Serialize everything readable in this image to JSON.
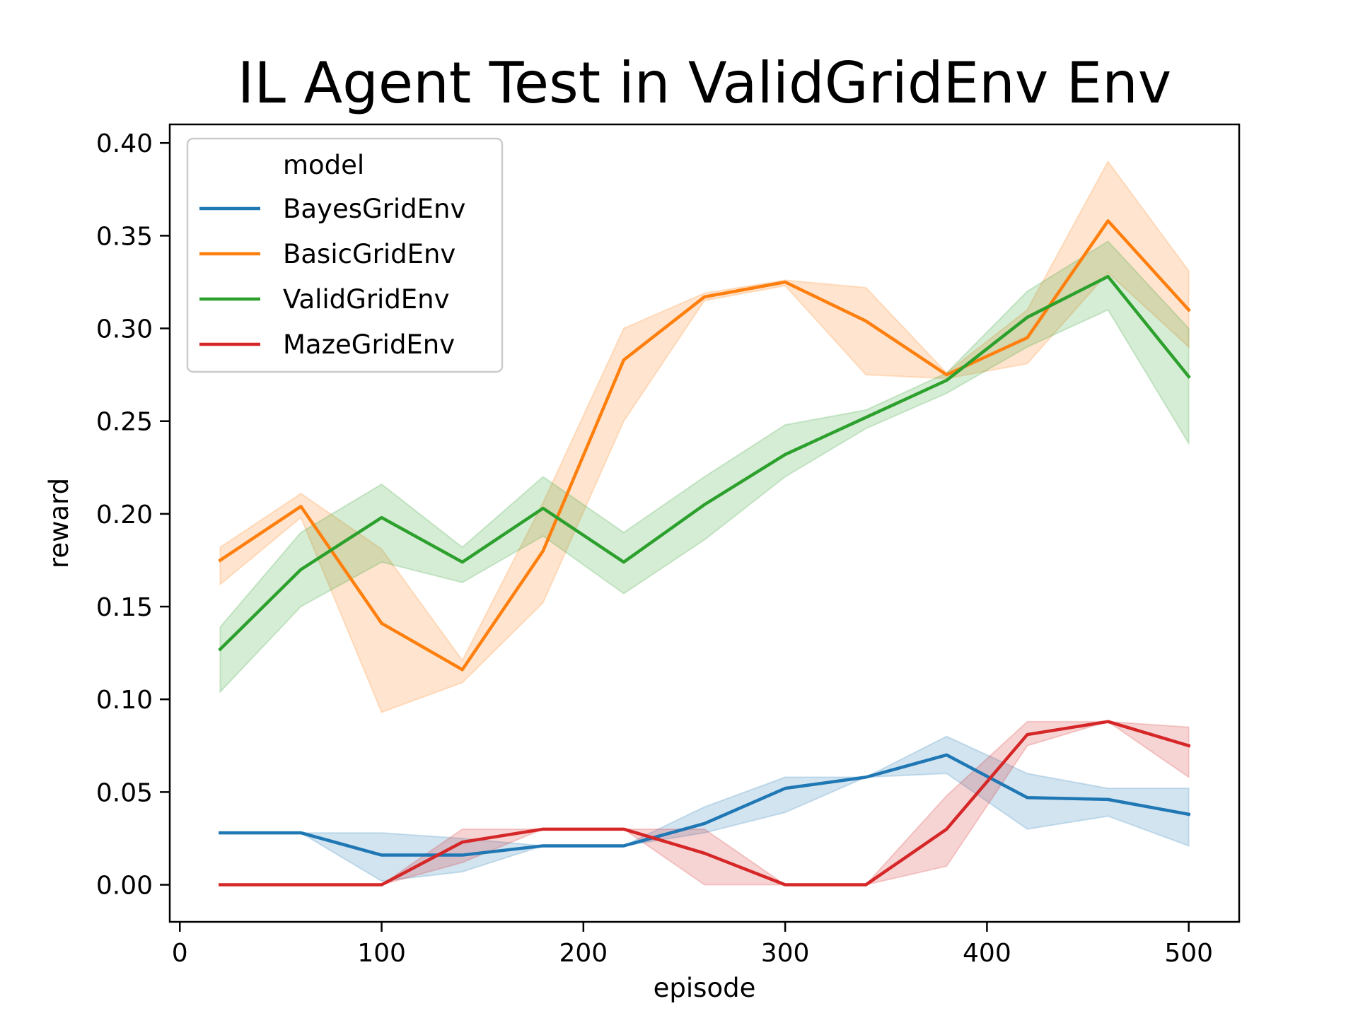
{
  "chart_data": {
    "type": "line",
    "title": "IL Agent Test in ValidGridEnv Env",
    "xlabel": "episode",
    "ylabel": "reward",
    "xlim": [
      -5,
      525
    ],
    "ylim": [
      -0.02,
      0.41
    ],
    "xticks": [
      0,
      100,
      200,
      300,
      400,
      500
    ],
    "xtick_labels": [
      "0",
      "100",
      "200",
      "300",
      "400",
      "500"
    ],
    "yticks": [
      0.0,
      0.05,
      0.1,
      0.15,
      0.2,
      0.25,
      0.3,
      0.35,
      0.4
    ],
    "ytick_labels": [
      "0.00",
      "0.05",
      "0.10",
      "0.15",
      "0.20",
      "0.25",
      "0.30",
      "0.35",
      "0.40"
    ],
    "grid": false,
    "legend": {
      "title": "model",
      "placement": "upper-left"
    },
    "x": [
      20,
      60,
      100,
      140,
      180,
      220,
      260,
      300,
      340,
      380,
      420,
      460,
      500
    ],
    "series": [
      {
        "name": "BayesGridEnv",
        "color": "#1f77b4",
        "values": [
          0.028,
          0.028,
          0.016,
          0.016,
          0.021,
          0.021,
          0.033,
          0.052,
          0.058,
          0.07,
          0.047,
          0.046,
          0.038
        ],
        "lower": [
          0.028,
          0.028,
          0.002,
          0.007,
          0.021,
          0.021,
          0.028,
          0.039,
          0.058,
          0.06,
          0.03,
          0.037,
          0.021
        ],
        "upper": [
          0.028,
          0.028,
          0.028,
          0.025,
          0.021,
          0.021,
          0.042,
          0.058,
          0.058,
          0.08,
          0.06,
          0.052,
          0.052
        ]
      },
      {
        "name": "BasicGridEnv",
        "color": "#ff7f0e",
        "values": [
          0.175,
          0.204,
          0.141,
          0.116,
          0.18,
          0.283,
          0.317,
          0.325,
          0.304,
          0.275,
          0.295,
          0.358,
          0.31
        ],
        "lower": [
          0.162,
          0.198,
          0.093,
          0.109,
          0.152,
          0.25,
          0.315,
          0.323,
          0.275,
          0.273,
          0.281,
          0.33,
          0.29
        ],
        "upper": [
          0.182,
          0.211,
          0.181,
          0.121,
          0.206,
          0.3,
          0.319,
          0.326,
          0.322,
          0.276,
          0.31,
          0.39,
          0.331
        ]
      },
      {
        "name": "ValidGridEnv",
        "color": "#2ca02c",
        "values": [
          0.127,
          0.17,
          0.198,
          0.174,
          0.203,
          0.174,
          0.205,
          0.232,
          0.252,
          0.272,
          0.306,
          0.328,
          0.274
        ],
        "lower": [
          0.104,
          0.15,
          0.174,
          0.163,
          0.188,
          0.157,
          0.186,
          0.22,
          0.246,
          0.265,
          0.29,
          0.31,
          0.238
        ],
        "upper": [
          0.139,
          0.19,
          0.216,
          0.182,
          0.22,
          0.19,
          0.22,
          0.248,
          0.256,
          0.276,
          0.32,
          0.347,
          0.3
        ]
      },
      {
        "name": "MazeGridEnv",
        "color": "#d62728",
        "values": [
          0.0,
          0.0,
          0.0,
          0.023,
          0.03,
          0.03,
          0.017,
          0.0,
          0.0,
          0.03,
          0.081,
          0.088,
          0.075
        ],
        "lower": [
          0.0,
          0.0,
          0.0,
          0.012,
          0.03,
          0.03,
          0.0,
          0.0,
          0.0,
          0.01,
          0.075,
          0.088,
          0.058
        ],
        "upper": [
          0.0,
          0.0,
          0.0,
          0.03,
          0.03,
          0.03,
          0.03,
          0.0,
          0.0,
          0.048,
          0.088,
          0.088,
          0.085
        ]
      }
    ]
  }
}
